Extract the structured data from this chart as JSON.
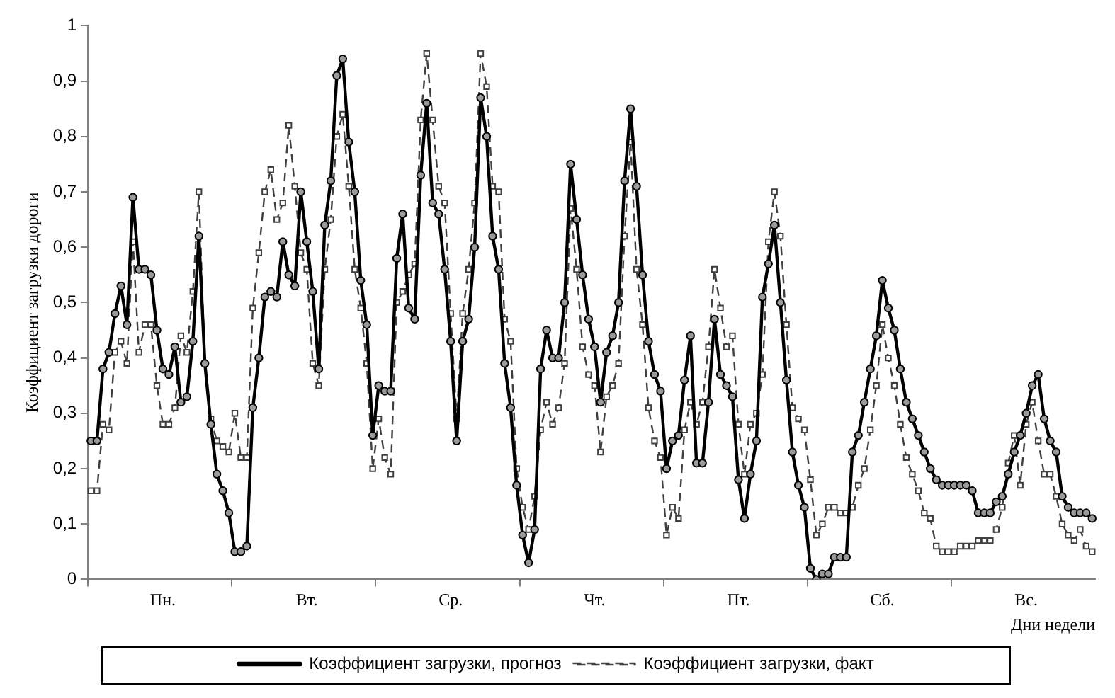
{
  "chart_data": {
    "type": "line",
    "xlabel": "Дни недели",
    "ylabel": "Коэффициент загрузки дороги",
    "categories": [
      null,
      null,
      null,
      null,
      null,
      null,
      null,
      null,
      null,
      null,
      null,
      null,
      "Пн.",
      null,
      null,
      null,
      null,
      null,
      null,
      null,
      null,
      null,
      null,
      null,
      null,
      null,
      null,
      null,
      null,
      null,
      null,
      null,
      null,
      null,
      null,
      null,
      "Вт.",
      null,
      null,
      null,
      null,
      null,
      null,
      null,
      null,
      null,
      null,
      null,
      null,
      null,
      null,
      null,
      null,
      null,
      null,
      null,
      null,
      null,
      null,
      null,
      "Ср.",
      null,
      null,
      null,
      null,
      null,
      null,
      null,
      null,
      null,
      null,
      null,
      null,
      null,
      null,
      null,
      null,
      null,
      null,
      null,
      null,
      null,
      null,
      null,
      "Чт.",
      null,
      null,
      null,
      null,
      null,
      null,
      null,
      null,
      null,
      null,
      null,
      null,
      null,
      null,
      null,
      null,
      null,
      null,
      null,
      null,
      null,
      null,
      null,
      "Пт.",
      null,
      null,
      null,
      null,
      null,
      null,
      null,
      null,
      null,
      null,
      null,
      null,
      null,
      null,
      null,
      null,
      null,
      null,
      null,
      null,
      null,
      null,
      null,
      "Сб.",
      null,
      null,
      null,
      null,
      null,
      null,
      null,
      null,
      null,
      null,
      null,
      null,
      null,
      null,
      null,
      null,
      null,
      null,
      null,
      null,
      null,
      null,
      null,
      "Вс.",
      null,
      null,
      null,
      null,
      null,
      null,
      null,
      null,
      null,
      null,
      null
    ],
    "series": [
      {
        "name": "Коэффициент загрузки, прогноз",
        "color": "#000000",
        "marker": "circle",
        "line_style": "solid",
        "values": [
          0.25,
          0.25,
          0.38,
          0.41,
          0.48,
          0.53,
          0.46,
          0.69,
          0.56,
          0.56,
          0.55,
          0.45,
          0.38,
          0.37,
          0.42,
          0.32,
          0.33,
          0.43,
          0.62,
          0.39,
          0.28,
          0.19,
          0.16,
          0.12,
          0.05,
          0.05,
          0.06,
          0.31,
          0.4,
          0.51,
          0.52,
          0.51,
          0.61,
          0.55,
          0.53,
          0.7,
          0.61,
          0.52,
          0.38,
          0.64,
          0.72,
          0.91,
          0.94,
          0.79,
          0.7,
          0.54,
          0.46,
          0.26,
          0.35,
          0.34,
          0.34,
          0.58,
          0.66,
          0.49,
          0.47,
          0.73,
          0.86,
          0.68,
          0.66,
          0.56,
          0.43,
          0.25,
          0.43,
          0.47,
          0.6,
          0.87,
          0.8,
          0.62,
          0.56,
          0.39,
          0.31,
          0.17,
          0.08,
          0.03,
          0.09,
          0.38,
          0.45,
          0.4,
          0.4,
          0.5,
          0.75,
          0.65,
          0.55,
          0.47,
          0.42,
          0.32,
          0.41,
          0.44,
          0.5,
          0.72,
          0.85,
          0.71,
          0.55,
          0.43,
          0.37,
          0.34,
          0.2,
          0.25,
          0.26,
          0.36,
          0.44,
          0.21,
          0.21,
          0.32,
          0.47,
          0.37,
          0.35,
          0.33,
          0.18,
          0.11,
          0.19,
          0.25,
          0.51,
          0.57,
          0.64,
          0.5,
          0.36,
          0.23,
          0.17,
          0.13,
          0.02,
          0,
          0.01,
          0.01,
          0.04,
          0.04,
          0.04,
          0.23,
          0.26,
          0.32,
          0.38,
          0.44,
          0.54,
          0.49,
          0.45,
          0.38,
          0.32,
          0.29,
          0.26,
          0.23,
          0.2,
          0.18,
          0.17,
          0.17,
          0.17,
          0.17,
          0.17,
          0.16,
          0.12,
          0.12,
          0.12,
          0.14,
          0.15,
          0.19,
          0.23,
          0.26,
          0.3,
          0.35,
          0.37,
          0.29,
          0.25,
          0.23,
          0.15,
          0.13,
          0.12,
          0.12,
          0.12,
          0.11
        ]
      },
      {
        "name": "Коэффициент загрузки, факт",
        "color": "#404040",
        "marker": "square",
        "line_style": "dashed",
        "values": [
          0.16,
          0.16,
          0.28,
          0.27,
          0.41,
          0.43,
          0.39,
          0.61,
          0.41,
          0.46,
          0.46,
          0.35,
          0.28,
          0.28,
          0.31,
          0.44,
          0.41,
          0.52,
          0.7,
          0.39,
          0.29,
          0.25,
          0.24,
          0.23,
          0.3,
          0.22,
          0.22,
          0.49,
          0.59,
          0.7,
          0.74,
          0.65,
          0.68,
          0.82,
          0.71,
          0.59,
          0.56,
          0.39,
          0.35,
          0.56,
          0.65,
          0.8,
          0.84,
          0.71,
          0.56,
          0.49,
          0.39,
          0.2,
          0.29,
          0.22,
          0.19,
          0.5,
          0.52,
          0.55,
          0.57,
          0.83,
          0.95,
          0.83,
          0.71,
          0.68,
          0.48,
          0.29,
          0.48,
          0.56,
          0.68,
          0.95,
          0.89,
          0.71,
          0.7,
          0.47,
          0.43,
          0.2,
          0.13,
          0.09,
          0.15,
          0.27,
          0.32,
          0.28,
          0.31,
          0.39,
          0.67,
          0.56,
          0.42,
          0.37,
          0.35,
          0.23,
          0.33,
          0.35,
          0.39,
          0.62,
          0.79,
          0.56,
          0.46,
          0.31,
          0.25,
          0.22,
          0.08,
          0.13,
          0.11,
          0.27,
          0.32,
          0.28,
          0.32,
          0.42,
          0.56,
          0.49,
          0.42,
          0.44,
          0.28,
          0.19,
          0.28,
          0.3,
          0.37,
          0.61,
          0.7,
          0.62,
          0.46,
          0.31,
          0.29,
          0.27,
          0.18,
          0.08,
          0.1,
          0.13,
          0.13,
          0.12,
          0.12,
          0.13,
          0.17,
          0.2,
          0.27,
          0.35,
          0.46,
          0.4,
          0.35,
          0.28,
          0.22,
          0.19,
          0.16,
          0.12,
          0.11,
          0.06,
          0.05,
          0.05,
          0.05,
          0.06,
          0.06,
          0.06,
          0.07,
          0.07,
          0.07,
          0.09,
          0.13,
          0.21,
          0.26,
          0.17,
          0.28,
          0.32,
          0.25,
          0.19,
          0.19,
          0.15,
          0.1,
          0.08,
          0.07,
          0.09,
          0.06,
          0.05
        ]
      }
    ],
    "ylim": [
      0,
      1
    ],
    "yticks": [
      0,
      {
        "value": 0.1,
        "label": "0,1"
      },
      {
        "value": 0.2,
        "label": "0,2"
      },
      {
        "value": 0.3,
        "label": "0,3"
      },
      {
        "value": 0.4,
        "label": "0,4"
      },
      {
        "value": 0.5,
        "label": "0,5"
      },
      {
        "value": 0.6,
        "label": "0,6"
      },
      {
        "value": 0.7,
        "label": "0,7"
      },
      {
        "value": 0.8,
        "label": "0,8"
      },
      {
        "value": 0.9,
        "label": "0,9"
      },
      1
    ],
    "grid": false,
    "legend": "bottom"
  }
}
